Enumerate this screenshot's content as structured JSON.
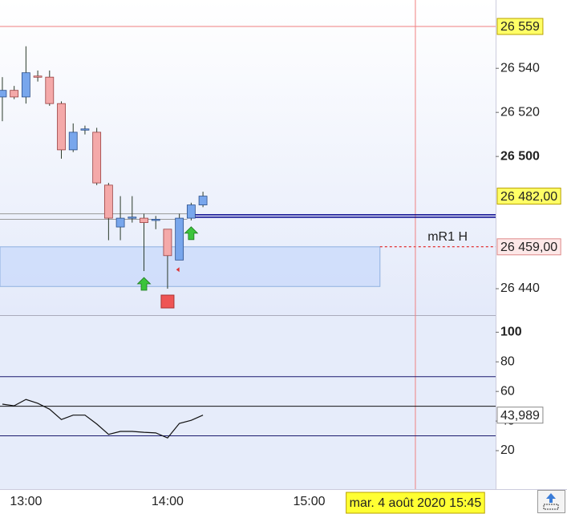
{
  "chart_data": [
    {
      "type": "candlestick",
      "x": [
        "12:50",
        "12:55",
        "13:00",
        "13:05",
        "13:10",
        "13:15",
        "13:20",
        "13:25",
        "13:30",
        "13:35",
        "13:40",
        "13:45",
        "13:50",
        "13:55",
        "14:00",
        "14:05",
        "14:10",
        "14:15"
      ],
      "open": [
        26527,
        26530,
        26527,
        26536.5,
        26536,
        26524,
        26503,
        26512,
        26511,
        26487,
        26468,
        26472,
        26472,
        26471,
        26467,
        26453,
        26472,
        26478
      ],
      "high": [
        26536,
        26532,
        26550,
        26539,
        26539,
        26525,
        26515,
        26514,
        26513,
        26488,
        26482,
        26482,
        26474,
        26473,
        26467,
        26474,
        26479,
        26484
      ],
      "low": [
        26516,
        26526,
        26524,
        26534,
        26523,
        26499,
        26502,
        26510,
        26487,
        26462,
        26462,
        26470,
        26448,
        26467,
        26440,
        26453,
        26471,
        26477
      ],
      "close": [
        26530,
        26527,
        26538,
        26536,
        26524,
        26503,
        26511,
        26512.5,
        26488,
        26472,
        26472,
        26472.5,
        26470,
        26471.5,
        26455,
        26472,
        26478,
        26482
      ],
      "close_label": "26 482,00",
      "bull_color": "#78a6ec",
      "bear_color": "#f4a9a9",
      "xlim": [
        "12:49",
        "16:19"
      ],
      "xticks": [
        "13:00",
        "14:00",
        "15:00"
      ],
      "ylim": [
        26428,
        26571
      ],
      "yticks": [
        {
          "value": 26440,
          "label": "26 440"
        },
        {
          "value": 26500,
          "label": "26 500",
          "bold": true
        },
        {
          "value": 26520,
          "label": "26 520"
        },
        {
          "value": 26540,
          "label": "26 540"
        }
      ],
      "level": {
        "value": 26559,
        "label": "26 559",
        "color": "#f08080"
      },
      "zone": {
        "name": "mR1 H",
        "top": 26459,
        "bottom": 26441,
        "top_label": "26 459,00",
        "end": "15:30",
        "color": "#e00000"
      },
      "position_line": {
        "value": 26473,
        "from": "14:10",
        "color": "#00008b"
      },
      "gray_lines": [
        26474,
        26471.5
      ],
      "signals": [
        {
          "x": "13:50",
          "kind": "buy"
        },
        {
          "x": "14:10",
          "kind": "buy"
        },
        {
          "x": "14:00",
          "kind": "stop"
        },
        {
          "x": "14:05",
          "kind": "mark"
        }
      ],
      "cursor_time": "15:45",
      "date_label": "mar. 4 août 2020 15:45"
    },
    {
      "type": "line",
      "x": [
        "12:50",
        "12:55",
        "13:00",
        "13:05",
        "13:10",
        "13:15",
        "13:20",
        "13:25",
        "13:30",
        "13:35",
        "13:40",
        "13:45",
        "13:50",
        "13:55",
        "14:00",
        "14:05",
        "14:10",
        "14:15"
      ],
      "values": [
        51.4,
        50.3,
        54.6,
        52,
        48,
        41,
        44,
        44,
        38,
        31,
        33,
        33,
        32.4,
        32,
        28.6,
        38.4,
        40.5,
        43.989
      ],
      "last_value_label": "43,989",
      "color": "#111111",
      "ylim": [
        -6,
        111
      ],
      "yticks": [
        20,
        40,
        60,
        80,
        {
          "value": 100,
          "label": "100",
          "bold": true
        }
      ],
      "levels": [
        {
          "value": 70,
          "color": "#1a1a6e"
        },
        {
          "value": 50,
          "color": "#111111"
        },
        {
          "value": 30,
          "color": "#1a1a6e"
        }
      ]
    }
  ]
}
